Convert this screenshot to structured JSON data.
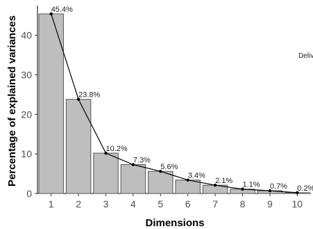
{
  "chart_data": {
    "type": "bar",
    "categories": [
      "1",
      "2",
      "3",
      "4",
      "5",
      "6",
      "7",
      "8",
      "9",
      "10"
    ],
    "values": [
      45.4,
      23.8,
      10.2,
      7.3,
      5.6,
      3.4,
      2.1,
      1.1,
      0.7,
      0.2
    ],
    "labels": [
      "45.4%",
      "23.8%",
      "10.2%",
      "7.3%",
      "5.6%",
      "3.4%",
      "2.1%",
      "1.1%",
      "0.7%",
      "0.2%"
    ],
    "overlay_line": true,
    "xlabel": "Dimensions",
    "ylabel": "Percentage of explained variances",
    "ylim": [
      0,
      47.5
    ],
    "yticks": [
      0,
      10,
      20,
      30,
      40
    ],
    "grid": false,
    "bar_color": "#bebebe",
    "bar_stroke": "#555555",
    "line_color": "#000000",
    "annotation": "Deliv"
  }
}
